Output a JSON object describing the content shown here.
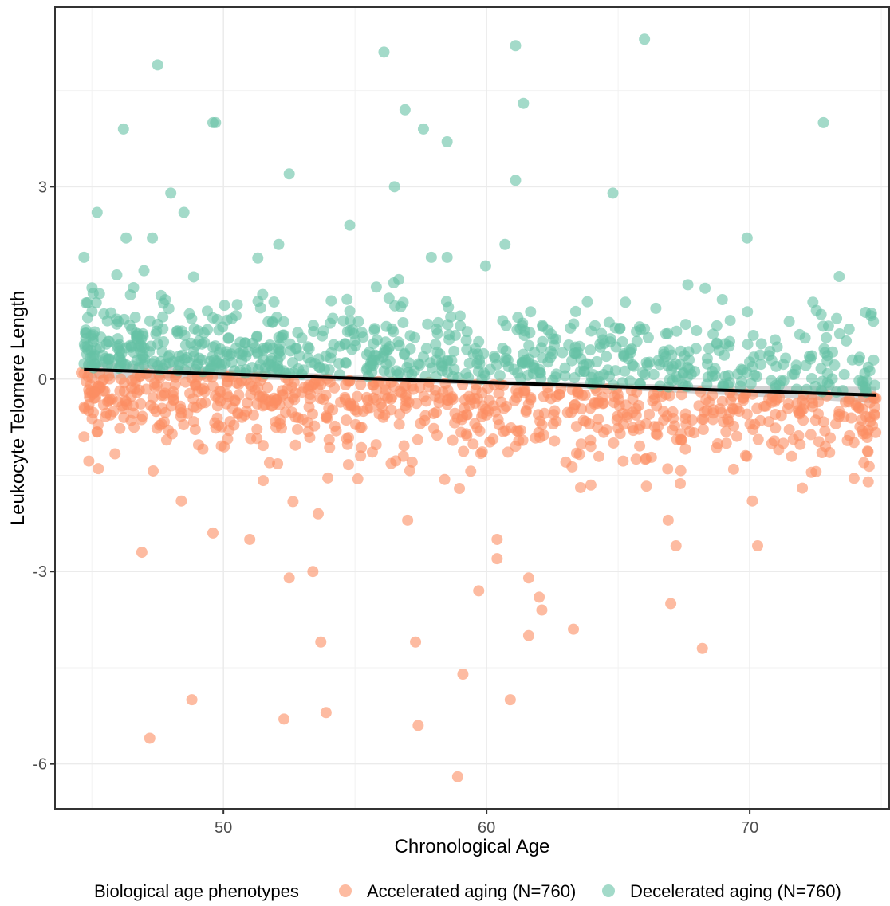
{
  "chart_data": {
    "type": "scatter",
    "title": "",
    "xlabel": "Chronological Age",
    "ylabel": "Leukocyte Telomere Length",
    "xlim": [
      43.6,
      75.3
    ],
    "ylim": [
      -6.7,
      5.8
    ],
    "x_ticks": [
      50,
      60,
      70
    ],
    "x_tick_labels": [
      "50",
      "60",
      "70"
    ],
    "y_ticks": [
      3,
      0,
      -3,
      -6
    ],
    "y_tick_labels": [
      "3",
      "0",
      "-3",
      "-6"
    ],
    "grid": true,
    "legend": {
      "title": "Biological age phenotypes",
      "position": "bottom"
    },
    "series": [
      {
        "name": "Accelerated aging (N=760)",
        "color": "#fc8d62",
        "n_total": 760,
        "shown_outliers": [
          {
            "x": 47.2,
            "y": -5.6
          },
          {
            "x": 48.8,
            "y": -5.0
          },
          {
            "x": 52.3,
            "y": -5.3
          },
          {
            "x": 53.9,
            "y": -5.2
          },
          {
            "x": 57.4,
            "y": -5.4
          },
          {
            "x": 58.9,
            "y": -6.2
          },
          {
            "x": 59.1,
            "y": -4.6
          },
          {
            "x": 60.9,
            "y": -5.0
          },
          {
            "x": 53.7,
            "y": -4.1
          },
          {
            "x": 57.3,
            "y": -4.1
          },
          {
            "x": 61.6,
            "y": -4.0
          },
          {
            "x": 63.3,
            "y": -3.9
          },
          {
            "x": 68.2,
            "y": -4.2
          },
          {
            "x": 52.5,
            "y": -3.1
          },
          {
            "x": 53.4,
            "y": -3.0
          },
          {
            "x": 59.7,
            "y": -3.3
          },
          {
            "x": 61.6,
            "y": -3.1
          },
          {
            "x": 62.0,
            "y": -3.4
          },
          {
            "x": 62.1,
            "y": -3.6
          },
          {
            "x": 67.0,
            "y": -3.5
          },
          {
            "x": 46.9,
            "y": -2.7
          },
          {
            "x": 49.6,
            "y": -2.4
          },
          {
            "x": 51.0,
            "y": -2.5
          },
          {
            "x": 60.4,
            "y": -2.5
          },
          {
            "x": 60.4,
            "y": -2.8
          },
          {
            "x": 67.2,
            "y": -2.6
          },
          {
            "x": 70.3,
            "y": -2.6
          },
          {
            "x": 66.9,
            "y": -2.2
          },
          {
            "x": 48.4,
            "y": -1.9
          },
          {
            "x": 53.6,
            "y": -2.1
          },
          {
            "x": 57.0,
            "y": -2.2
          },
          {
            "x": 70.1,
            "y": -1.9
          },
          {
            "x": 72.0,
            "y": -1.7
          },
          {
            "x": 71.1,
            "y": -1.1
          },
          {
            "x": 73.4,
            "y": -0.5
          },
          {
            "x": 74.8,
            "y": -0.3
          },
          {
            "x": 69.6,
            "y": -0.5
          },
          {
            "x": 44.7,
            "y": -0.9
          },
          {
            "x": 44.6,
            "y": 0.1
          }
        ],
        "cloud_center": [
          -0.1,
          -0.45
        ],
        "cloud_spread": 0.6
      },
      {
        "name": "Decelerated aging (N=760)",
        "color": "#66c2a5",
        "n_total": 760,
        "shown_outliers": [
          {
            "x": 47.5,
            "y": 4.9
          },
          {
            "x": 56.1,
            "y": 5.1
          },
          {
            "x": 61.1,
            "y": 5.2
          },
          {
            "x": 66.0,
            "y": 5.3
          },
          {
            "x": 61.4,
            "y": 4.3
          },
          {
            "x": 56.9,
            "y": 4.2
          },
          {
            "x": 46.2,
            "y": 3.9
          },
          {
            "x": 49.6,
            "y": 4.0
          },
          {
            "x": 49.7,
            "y": 4.0
          },
          {
            "x": 57.6,
            "y": 3.9
          },
          {
            "x": 58.5,
            "y": 3.7
          },
          {
            "x": 72.8,
            "y": 4.0
          },
          {
            "x": 52.5,
            "y": 3.2
          },
          {
            "x": 48.0,
            "y": 2.9
          },
          {
            "x": 56.5,
            "y": 3.0
          },
          {
            "x": 61.1,
            "y": 3.1
          },
          {
            "x": 64.8,
            "y": 2.9
          },
          {
            "x": 45.2,
            "y": 2.6
          },
          {
            "x": 48.5,
            "y": 2.6
          },
          {
            "x": 46.3,
            "y": 2.2
          },
          {
            "x": 47.3,
            "y": 2.2
          },
          {
            "x": 54.8,
            "y": 2.4
          },
          {
            "x": 69.9,
            "y": 2.2
          },
          {
            "x": 52.1,
            "y": 2.1
          },
          {
            "x": 60.7,
            "y": 2.1
          },
          {
            "x": 44.7,
            "y": 1.9
          },
          {
            "x": 57.9,
            "y": 1.9
          },
          {
            "x": 58.5,
            "y": 1.9
          },
          {
            "x": 73.4,
            "y": 1.6
          },
          {
            "x": 74.7,
            "y": 0.9
          },
          {
            "x": 72.4,
            "y": 1.2
          },
          {
            "x": 71.5,
            "y": 0.9
          },
          {
            "x": 73.9,
            "y": 0.3
          }
        ],
        "cloud_center": [
          0.0,
          0.55
        ],
        "cloud_spread": 0.55
      }
    ],
    "trend_line": {
      "x": [
        44.7,
        74.8
      ],
      "y": [
        0.15,
        -0.25
      ],
      "color": "#000000",
      "confidence_band_color": "#bfbfbf"
    }
  }
}
